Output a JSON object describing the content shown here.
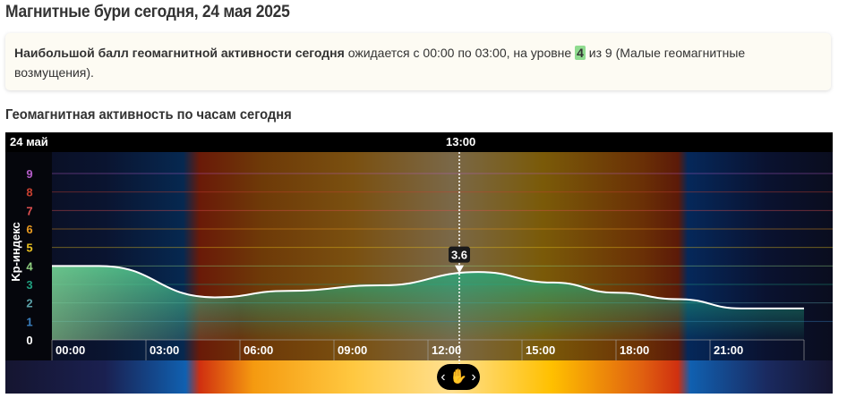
{
  "page_title": "Магнитные бури сегодня, 24 мая 2025",
  "info": {
    "bold": "Наибольшой балл геомагнитной активности сегодня",
    "text1": " ожидается с 00:00 по 03:00, на уровне ",
    "level": "4",
    "text2": " из 9 (Малые геомагнитные возмущения)."
  },
  "section_title": "Геомагнитная активность по часам сегодня",
  "chart_data": {
    "type": "area",
    "date_label": "24 май",
    "current_time": "13:00",
    "current_value": "3.6",
    "ylabel": "Kp-индекс",
    "ylim": [
      0,
      9
    ],
    "y_ticks": [
      "0",
      "1",
      "2",
      "3",
      "4",
      "5",
      "6",
      "7",
      "8",
      "9"
    ],
    "y_tick_colors": [
      "#ffffff",
      "#3a80c0",
      "#5aa0a8",
      "#20a080",
      "#90d080",
      "#e8c020",
      "#e89a20",
      "#e05050",
      "#c84030",
      "#b45cc8"
    ],
    "x_ticks": [
      "00:00",
      "03:00",
      "06:00",
      "09:00",
      "12:00",
      "15:00",
      "18:00",
      "21:00"
    ],
    "xlim": [
      0,
      24
    ],
    "x": [
      0,
      1.5,
      5.2,
      7.5,
      10.5,
      13.6,
      16,
      18,
      20,
      22,
      24
    ],
    "y": [
      4.0,
      4.0,
      2.3,
      2.65,
      2.95,
      3.67,
      3.1,
      2.55,
      2.2,
      1.7,
      1.7
    ],
    "line_color": "#ffffff",
    "fill_color": "#8fd48f",
    "grid": true
  }
}
